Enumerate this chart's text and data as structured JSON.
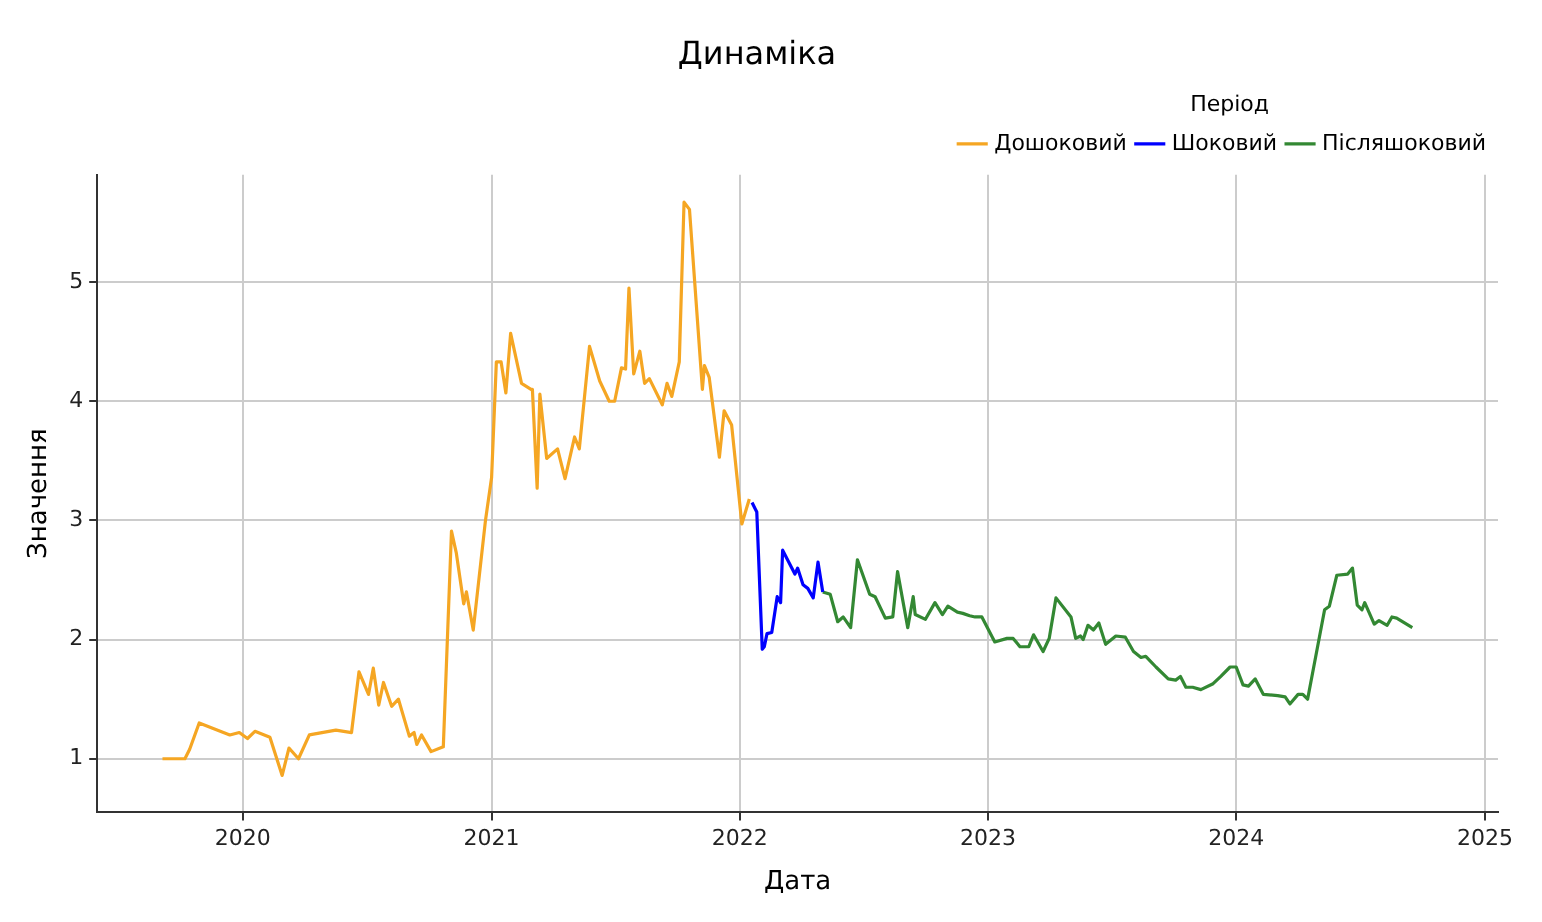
{
  "chart_data": {
    "type": "line",
    "title": "Динаміка",
    "xlabel": "Дата",
    "ylabel": "Значення",
    "legend_title": "Період",
    "legend": "top right",
    "grid": true,
    "marker": "none",
    "line_style": "solid",
    "xlim": [
      "2019-06-01",
      "2025-01-20"
    ],
    "xticks": [
      "2020",
      "2021",
      "2022",
      "2023",
      "2024",
      "2025"
    ],
    "ylim": [
      0.55,
      5.9
    ],
    "yticks": [
      1,
      2,
      3,
      4,
      5
    ],
    "series": [
      {
        "name": "Дошоковий",
        "color": "#f5a623",
        "x": [
          "2019-09-05",
          "2019-10-08",
          "2019-10-15",
          "2019-10-29",
          "2019-12-13",
          "2019-12-27",
          "2020-01-08",
          "2020-01-19",
          "2020-02-10",
          "2020-02-28",
          "2020-03-09",
          "2020-03-23",
          "2020-04-08",
          "2020-05-17",
          "2020-06-09",
          "2020-06-20",
          "2020-07-04",
          "2020-07-11",
          "2020-07-19",
          "2020-07-26",
          "2020-08-07",
          "2020-08-17",
          "2020-09-02",
          "2020-09-09",
          "2020-09-13",
          "2020-09-20",
          "2020-10-04",
          "2020-10-22",
          "2020-11-03",
          "2020-11-10",
          "2020-11-21",
          "2020-11-25",
          "2020-12-05",
          "2020-12-23",
          "2021-01-01",
          "2021-01-08",
          "2021-01-15",
          "2021-01-22",
          "2021-01-29",
          "2021-02-14",
          "2021-02-28",
          "2021-03-02",
          "2021-03-09",
          "2021-03-13",
          "2021-03-23",
          "2021-04-08",
          "2021-04-19",
          "2021-05-03",
          "2021-05-10",
          "2021-05-25",
          "2021-06-09",
          "2021-06-23",
          "2021-07-01",
          "2021-07-11",
          "2021-07-17",
          "2021-07-22",
          "2021-07-29",
          "2021-08-07",
          "2021-08-14",
          "2021-08-21",
          "2021-09-09",
          "2021-09-16",
          "2021-09-23",
          "2021-10-04",
          "2021-10-11",
          "2021-10-19",
          "2021-11-07",
          "2021-11-10",
          "2021-11-17",
          "2021-12-02",
          "2021-12-09",
          "2021-12-20",
          "2022-01-04",
          "2022-01-15"
        ],
        "values": [
          1.0,
          1.0,
          1.08,
          1.3,
          1.2,
          1.22,
          1.17,
          1.23,
          1.18,
          0.86,
          1.09,
          1.0,
          1.2,
          1.24,
          1.22,
          1.73,
          1.54,
          1.76,
          1.45,
          1.64,
          1.44,
          1.5,
          1.19,
          1.22,
          1.12,
          1.2,
          1.06,
          1.1,
          2.91,
          2.73,
          2.3,
          2.4,
          2.08,
          3.0,
          3.36,
          4.33,
          4.33,
          4.07,
          4.57,
          4.15,
          4.1,
          4.1,
          3.27,
          4.06,
          3.52,
          3.6,
          3.35,
          3.7,
          3.6,
          4.46,
          4.17,
          4.0,
          4.0,
          4.28,
          4.27,
          4.95,
          4.23,
          4.42,
          4.15,
          4.19,
          3.97,
          4.15,
          4.04,
          4.33,
          5.67,
          5.61,
          4.1,
          4.3,
          4.2,
          3.53,
          3.92,
          3.8,
          2.97,
          3.18
        ]
      },
      {
        "name": "Шоковий",
        "color": "#0000ff",
        "x": [
          "2022-01-19",
          "2022-01-26",
          "2022-02-03",
          "2022-02-06",
          "2022-02-10",
          "2022-02-17",
          "2022-02-25",
          "2022-03-02",
          "2022-03-05",
          "2022-03-23",
          "2022-03-27",
          "2022-04-04",
          "2022-04-11",
          "2022-04-19",
          "2022-04-26",
          "2022-05-03"
        ],
        "values": [
          3.15,
          3.07,
          1.92,
          1.94,
          2.05,
          2.06,
          2.36,
          2.31,
          2.75,
          2.55,
          2.6,
          2.46,
          2.43,
          2.35,
          2.65,
          2.4
        ]
      },
      {
        "name": "Післяшоковий",
        "color": "#338833",
        "x": [
          "2022-05-03",
          "2022-05-14",
          "2022-05-25",
          "2022-06-02",
          "2022-06-13",
          "2022-06-23",
          "2022-07-11",
          "2022-07-19",
          "2022-08-03",
          "2022-08-14",
          "2022-08-21",
          "2022-09-05",
          "2022-09-13",
          "2022-09-16",
          "2022-10-01",
          "2022-10-15",
          "2022-10-26",
          "2022-11-03",
          "2022-11-17",
          "2022-11-25",
          "2022-12-05",
          "2022-12-13",
          "2022-12-23",
          "2023-01-11",
          "2023-01-29",
          "2023-02-07",
          "2023-02-17",
          "2023-03-02",
          "2023-03-09",
          "2023-03-23",
          "2023-04-01",
          "2023-04-11",
          "2023-05-03",
          "2023-05-10",
          "2023-05-17",
          "2023-05-21",
          "2023-05-28",
          "2023-06-05",
          "2023-06-13",
          "2023-06-23",
          "2023-07-08",
          "2023-07-22",
          "2023-08-03",
          "2023-08-14",
          "2023-08-21",
          "2023-09-05",
          "2023-09-23",
          "2023-10-04",
          "2023-10-11",
          "2023-10-19",
          "2023-10-29",
          "2023-11-10",
          "2023-11-28",
          "2023-12-09",
          "2023-12-23",
          "2024-01-01",
          "2024-01-11",
          "2024-01-19",
          "2024-01-29",
          "2024-02-10",
          "2024-03-02",
          "2024-03-13",
          "2024-03-20",
          "2024-04-01",
          "2024-04-08",
          "2024-04-15",
          "2024-05-10",
          "2024-05-17",
          "2024-05-28",
          "2024-06-13",
          "2024-06-20",
          "2024-06-27",
          "2024-07-04",
          "2024-07-08",
          "2024-07-22",
          "2024-07-29",
          "2024-08-10",
          "2024-08-17",
          "2024-08-24",
          "2024-09-13",
          "2024-09-16"
        ],
        "values": [
          2.4,
          2.38,
          2.15,
          2.19,
          2.1,
          2.67,
          2.38,
          2.36,
          2.18,
          2.19,
          2.57,
          2.1,
          2.36,
          2.21,
          2.17,
          2.31,
          2.21,
          2.28,
          2.23,
          2.22,
          2.2,
          2.19,
          2.19,
          1.98,
          2.01,
          2.01,
          1.94,
          1.94,
          2.04,
          1.9,
          2.01,
          2.35,
          2.19,
          2.01,
          2.03,
          2.0,
          2.12,
          2.08,
          2.14,
          1.96,
          2.03,
          2.02,
          1.9,
          1.85,
          1.86,
          1.77,
          1.67,
          1.66,
          1.69,
          1.6,
          1.6,
          1.58,
          1.63,
          1.69,
          1.77,
          1.77,
          1.62,
          1.61,
          1.67,
          1.54,
          1.53,
          1.52,
          1.46,
          1.54,
          1.54,
          1.5,
          2.25,
          2.28,
          2.54,
          2.55,
          2.6,
          2.29,
          2.25,
          2.31,
          2.13,
          2.16,
          2.12,
          2.19,
          2.18,
          2.11,
          2.1
        ]
      }
    ]
  }
}
